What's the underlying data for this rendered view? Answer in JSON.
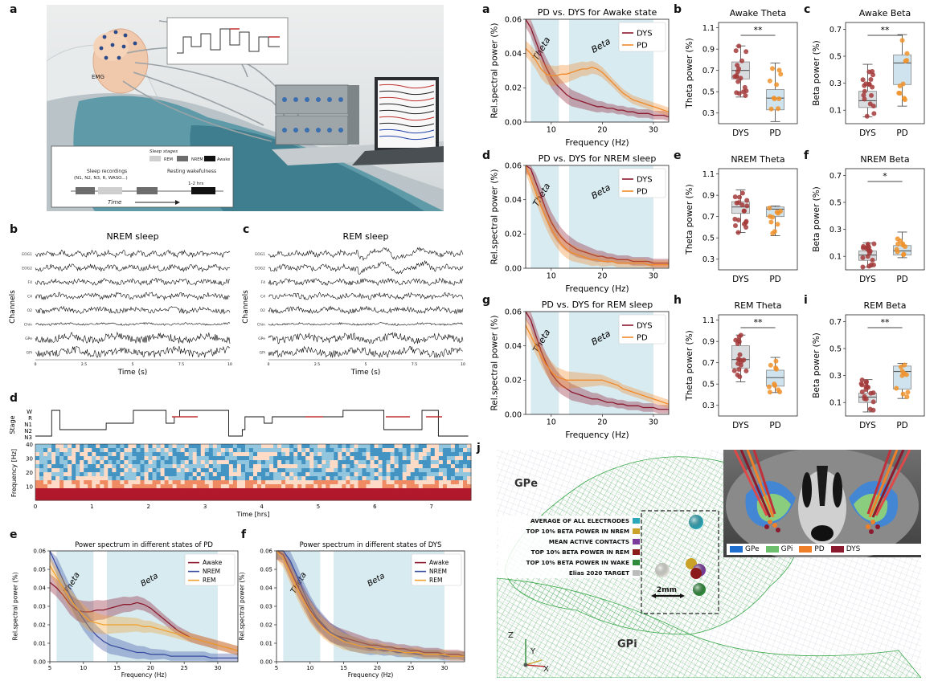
{
  "labels": {
    "a_left": "a",
    "b_left": "b",
    "c_left": "c",
    "d_left": "d",
    "e_left": "e",
    "f_left": "f",
    "a_right": "a",
    "b_right": "b",
    "c_right": "c",
    "d_right": "d",
    "e_right": "e",
    "f_right": "f",
    "g_right": "g",
    "h_right": "h",
    "i_right": "i",
    "j_right": "j"
  },
  "illustration": {
    "emg_label": "EMG",
    "legend_title": "Sleep stages",
    "legend_items": [
      "REM",
      "NREM",
      "Awake"
    ],
    "sleep_recordings": "Sleep recordings",
    "sleep_recordings_sub": "(N1, N2, N3, R, WASO...)",
    "resting": "Resting wakefulness",
    "duration": "1-2 hrs",
    "time": "Time"
  },
  "eeg_nrem": {
    "title": "NREM sleep",
    "channels": [
      "EOG1",
      "EOG2",
      "F4",
      "C4",
      "O2",
      "Chin",
      "GPe",
      "GPi"
    ],
    "ylabel": "Channels",
    "xlabel": "Time (s)",
    "xticks": [
      "0",
      "2.5",
      "5",
      "7.5",
      "10"
    ]
  },
  "eeg_rem": {
    "title": "REM sleep",
    "channels": [
      "EOG1",
      "EOG2",
      "F4",
      "C4",
      "O2",
      "Chin",
      "GPe",
      "GPi"
    ],
    "ylabel": "Channels",
    "xlabel": "Time (s)",
    "xticks": [
      "0",
      "2.5",
      "5",
      "7.5",
      "10"
    ]
  },
  "hypnogram": {
    "ylabel": "Stage",
    "stages": [
      "W",
      "R",
      "N1",
      "N2",
      "N3"
    ],
    "spec_ylabel": "Frequency [Hz]",
    "spec_yticks": [
      "10",
      "20",
      "30",
      "40"
    ],
    "xlabel": "Time [hrs]",
    "xticks": [
      "0",
      "1",
      "2",
      "3",
      "4",
      "5",
      "6",
      "7"
    ]
  },
  "spectra_left": [
    {
      "title": "Power spectrum in different states of PD",
      "ylabel": "Rel.spectral power (%)",
      "xlabel": "Frequency (Hz)",
      "band1": "Theta",
      "band2": "Beta",
      "xticks": [
        "5",
        "10",
        "15",
        "20",
        "25",
        "30"
      ],
      "yticks": [
        "0.00",
        "0.01",
        "0.02",
        "0.03",
        "0.04",
        "0.05",
        "0.06"
      ],
      "legend": [
        "Awake",
        "NREM",
        "REM"
      ]
    },
    {
      "title": "Power spectrum in different states of DYS",
      "ylabel": "Rel.spectral power (%)",
      "xlabel": "Frequency (Hz)",
      "band1": "Theta",
      "band2": "Beta",
      "xticks": [
        "5",
        "10",
        "15",
        "20",
        "25",
        "30"
      ],
      "yticks": [
        "0.00",
        "0.01",
        "0.02",
        "0.03",
        "0.04",
        "0.05",
        "0.06"
      ],
      "legend": [
        "Awake",
        "NREM",
        "REM"
      ]
    }
  ],
  "spectra_right": [
    {
      "title": "PD vs. DYS for Awake state",
      "ylabel": "Rel.spectral power (%)",
      "xlabel": "Frequency (Hz)",
      "band1": "Theta",
      "band2": "Beta",
      "xticks": [
        "10",
        "20",
        "30"
      ],
      "yticks": [
        "0.00",
        "0.02",
        "0.04",
        "0.06"
      ],
      "legend": [
        "DYS",
        "PD"
      ]
    },
    {
      "title": "PD vs. DYS for NREM sleep",
      "ylabel": "Rel.spectral power (%)",
      "xlabel": "Frequency (Hz)",
      "band1": "Theta",
      "band2": "Beta",
      "xticks": [
        "10",
        "20",
        "30"
      ],
      "yticks": [
        "0.00",
        "0.02",
        "0.04",
        "0.06"
      ],
      "legend": [
        "DYS",
        "PD"
      ]
    },
    {
      "title": "PD vs. DYS for REM sleep",
      "ylabel": "Rel.spectral power (%)",
      "xlabel": "Frequency (Hz)",
      "band1": "Theta",
      "band2": "Beta",
      "xticks": [
        "10",
        "20",
        "30"
      ],
      "yticks": [
        "0.00",
        "0.02",
        "0.04",
        "0.06"
      ],
      "legend": [
        "DYS",
        "PD"
      ]
    }
  ],
  "boxplots": [
    {
      "title": "Awake Theta",
      "ylabel": "Theta power (%)",
      "sig": "**",
      "yticks": [
        "0.3",
        "0.5",
        "0.7",
        "0.9",
        "1.1"
      ],
      "groups": [
        "DYS",
        "PD"
      ]
    },
    {
      "title": "Awake Beta",
      "ylabel": "Beta power (%)",
      "sig": "**",
      "yticks": [
        "0.1",
        "0.3",
        "0.5",
        "0.7"
      ],
      "groups": [
        "DYS",
        "PD"
      ]
    },
    {
      "title": "NREM Theta",
      "ylabel": "Theta power (%)",
      "sig": "",
      "yticks": [
        "0.3",
        "0.5",
        "0.7",
        "0.9",
        "1.1"
      ],
      "groups": [
        "DYS",
        "PD"
      ]
    },
    {
      "title": "NREM Beta",
      "ylabel": "Beta power (%)",
      "sig": "*",
      "yticks": [
        "0.1",
        "0.3",
        "0.5",
        "0.7"
      ],
      "groups": [
        "DYS",
        "PD"
      ]
    },
    {
      "title": "REM Theta",
      "ylabel": "Theta power (%)",
      "sig": "**",
      "yticks": [
        "0.3",
        "0.5",
        "0.7",
        "0.9",
        "1.1"
      ],
      "groups": [
        "DYS",
        "PD"
      ]
    },
    {
      "title": "REM Beta",
      "ylabel": "Beta power (%)",
      "sig": "**",
      "yticks": [
        "0.1",
        "0.3",
        "0.5",
        "0.7"
      ],
      "groups": [
        "DYS",
        "PD"
      ]
    }
  ],
  "brain": {
    "gpe": "GPe",
    "gpi": "GPi",
    "scale": "2mm",
    "axes": [
      "Z",
      "Y",
      "X"
    ],
    "legend": [
      {
        "label": "AVERAGE OF ALL ELECTRODES",
        "color": "#2aa7b8"
      },
      {
        "label": "TOP 10% BETA POWER IN NREM",
        "color": "#c9a227"
      },
      {
        "label": "MEAN ACTIVE CONTACTS",
        "color": "#7a3b9c"
      },
      {
        "label": "TOP 10% BETA POWER IN REM",
        "color": "#8b1a1a"
      },
      {
        "label": "TOP 10% BETA POWER IN WAKE",
        "color": "#2e8b3a"
      },
      {
        "label": "Elias 2020 TARGET",
        "color": "#bbbbbb"
      }
    ],
    "inset_legend": [
      {
        "label": "GPe",
        "color": "#1f6fd1"
      },
      {
        "label": "GPi",
        "color": "#6dbf6d"
      },
      {
        "label": "PD",
        "color": "#f07f2a"
      },
      {
        "label": "DYS",
        "color": "#8b1a2e"
      }
    ]
  },
  "chart_data": [
    {
      "type": "line",
      "id": "left-e",
      "title": "Power spectrum in different states of PD",
      "xlabel": "Frequency (Hz)",
      "ylabel": "Rel.spectral power (%)",
      "xlim": [
        5,
        33
      ],
      "ylim": [
        0,
        0.06
      ],
      "x": [
        5,
        6,
        7,
        8,
        9,
        10,
        11,
        12,
        13,
        14,
        15,
        16,
        17,
        18,
        19,
        20,
        21,
        22,
        23,
        24,
        25,
        26,
        27,
        28,
        29,
        30,
        31,
        32,
        33
      ],
      "series": [
        {
          "name": "Awake",
          "values": [
            0.043,
            0.04,
            0.036,
            0.031,
            0.028,
            0.027,
            0.027,
            0.028,
            0.028,
            0.029,
            0.03,
            0.031,
            0.031,
            0.032,
            0.031,
            0.029,
            0.026,
            0.023,
            0.02,
            0.017,
            0.015,
            0.013,
            0.012,
            0.011,
            0.01,
            0.009,
            0.008,
            0.007,
            0.006
          ]
        },
        {
          "name": "NREM",
          "values": [
            0.06,
            0.052,
            0.044,
            0.036,
            0.029,
            0.023,
            0.018,
            0.014,
            0.011,
            0.009,
            0.008,
            0.007,
            0.006,
            0.005,
            0.005,
            0.004,
            0.004,
            0.004,
            0.003,
            0.003,
            0.003,
            0.003,
            0.003,
            0.003,
            0.002,
            0.002,
            0.002,
            0.002,
            0.002
          ]
        },
        {
          "name": "REM",
          "values": [
            0.052,
            0.046,
            0.04,
            0.034,
            0.029,
            0.025,
            0.022,
            0.021,
            0.02,
            0.02,
            0.02,
            0.02,
            0.02,
            0.02,
            0.019,
            0.019,
            0.018,
            0.017,
            0.016,
            0.015,
            0.014,
            0.013,
            0.012,
            0.011,
            0.01,
            0.009,
            0.008,
            0.007,
            0.006
          ]
        }
      ]
    },
    {
      "type": "line",
      "id": "left-f",
      "title": "Power spectrum in different states of DYS",
      "xlabel": "Frequency (Hz)",
      "ylabel": "Rel.spectral power (%)",
      "xlim": [
        5,
        33
      ],
      "ylim": [
        0,
        0.06
      ],
      "x": [
        5,
        6,
        7,
        8,
        9,
        10,
        11,
        12,
        13,
        14,
        15,
        16,
        17,
        18,
        19,
        20,
        21,
        22,
        23,
        24,
        25,
        26,
        27,
        28,
        29,
        30,
        31,
        32,
        33
      ],
      "series": [
        {
          "name": "Awake",
          "values": [
            0.06,
            0.058,
            0.05,
            0.042,
            0.035,
            0.028,
            0.023,
            0.019,
            0.016,
            0.014,
            0.013,
            0.012,
            0.011,
            0.01,
            0.009,
            0.009,
            0.008,
            0.008,
            0.007,
            0.007,
            0.006,
            0.006,
            0.005,
            0.005,
            0.005,
            0.004,
            0.004,
            0.004,
            0.003
          ]
        },
        {
          "name": "NREM",
          "values": [
            0.06,
            0.06,
            0.055,
            0.047,
            0.038,
            0.03,
            0.024,
            0.02,
            0.016,
            0.014,
            0.012,
            0.01,
            0.009,
            0.008,
            0.007,
            0.007,
            0.006,
            0.006,
            0.005,
            0.005,
            0.005,
            0.004,
            0.004,
            0.004,
            0.004,
            0.003,
            0.003,
            0.003,
            0.003
          ]
        },
        {
          "name": "REM",
          "values": [
            0.06,
            0.056,
            0.048,
            0.04,
            0.033,
            0.027,
            0.022,
            0.018,
            0.015,
            0.013,
            0.011,
            0.01,
            0.009,
            0.008,
            0.008,
            0.007,
            0.007,
            0.006,
            0.006,
            0.005,
            0.005,
            0.005,
            0.004,
            0.004,
            0.004,
            0.004,
            0.003,
            0.003,
            0.003
          ]
        }
      ]
    },
    {
      "type": "line",
      "id": "right-a",
      "title": "PD vs. DYS for Awake state",
      "xlabel": "Frequency (Hz)",
      "ylabel": "Rel.spectral power (%)",
      "xlim": [
        5,
        33
      ],
      "ylim": [
        0,
        0.06
      ],
      "x": [
        5,
        6,
        7,
        8,
        9,
        10,
        11,
        12,
        13,
        14,
        15,
        16,
        17,
        18,
        19,
        20,
        21,
        22,
        23,
        24,
        25,
        26,
        27,
        28,
        29,
        30,
        31,
        32,
        33
      ],
      "series": [
        {
          "name": "DYS",
          "values": [
            0.06,
            0.055,
            0.047,
            0.039,
            0.032,
            0.026,
            0.022,
            0.019,
            0.016,
            0.014,
            0.013,
            0.012,
            0.011,
            0.01,
            0.009,
            0.009,
            0.008,
            0.008,
            0.007,
            0.007,
            0.006,
            0.006,
            0.005,
            0.005,
            0.005,
            0.004,
            0.004,
            0.004,
            0.003
          ]
        },
        {
          "name": "PD",
          "values": [
            0.043,
            0.04,
            0.036,
            0.031,
            0.028,
            0.027,
            0.027,
            0.028,
            0.028,
            0.029,
            0.03,
            0.031,
            0.031,
            0.032,
            0.031,
            0.029,
            0.026,
            0.023,
            0.02,
            0.017,
            0.015,
            0.013,
            0.012,
            0.011,
            0.01,
            0.009,
            0.008,
            0.007,
            0.006
          ]
        }
      ]
    },
    {
      "type": "line",
      "id": "right-d",
      "title": "PD vs. DYS for NREM sleep",
      "xlabel": "Frequency (Hz)",
      "ylabel": "Rel.spectral power (%)",
      "xlim": [
        5,
        33
      ],
      "ylim": [
        0,
        0.06
      ],
      "x": [
        5,
        6,
        7,
        8,
        9,
        10,
        11,
        12,
        13,
        14,
        15,
        16,
        17,
        18,
        19,
        20,
        21,
        22,
        23,
        24,
        25,
        26,
        27,
        28,
        29,
        30,
        31,
        32,
        33
      ],
      "series": [
        {
          "name": "DYS",
          "values": [
            0.06,
            0.058,
            0.05,
            0.042,
            0.034,
            0.027,
            0.022,
            0.018,
            0.015,
            0.013,
            0.011,
            0.01,
            0.009,
            0.008,
            0.007,
            0.007,
            0.006,
            0.006,
            0.005,
            0.005,
            0.005,
            0.004,
            0.004,
            0.004,
            0.004,
            0.003,
            0.003,
            0.003,
            0.003
          ]
        },
        {
          "name": "PD",
          "values": [
            0.06,
            0.052,
            0.044,
            0.036,
            0.029,
            0.023,
            0.018,
            0.014,
            0.011,
            0.009,
            0.008,
            0.007,
            0.006,
            0.005,
            0.005,
            0.004,
            0.004,
            0.004,
            0.003,
            0.003,
            0.003,
            0.003,
            0.003,
            0.003,
            0.002,
            0.002,
            0.002,
            0.002,
            0.002
          ]
        }
      ]
    },
    {
      "type": "line",
      "id": "right-g",
      "title": "PD vs. DYS for REM sleep",
      "xlabel": "Frequency (Hz)",
      "ylabel": "Rel.spectral power (%)",
      "xlim": [
        5,
        33
      ],
      "ylim": [
        0,
        0.06
      ],
      "x": [
        5,
        6,
        7,
        8,
        9,
        10,
        11,
        12,
        13,
        14,
        15,
        16,
        17,
        18,
        19,
        20,
        21,
        22,
        23,
        24,
        25,
        26,
        27,
        28,
        29,
        30,
        31,
        32,
        33
      ],
      "series": [
        {
          "name": "DYS",
          "values": [
            0.06,
            0.055,
            0.046,
            0.037,
            0.03,
            0.024,
            0.02,
            0.017,
            0.015,
            0.013,
            0.012,
            0.011,
            0.01,
            0.009,
            0.009,
            0.008,
            0.007,
            0.007,
            0.006,
            0.006,
            0.005,
            0.005,
            0.005,
            0.004,
            0.004,
            0.004,
            0.003,
            0.003,
            0.003
          ]
        },
        {
          "name": "PD",
          "values": [
            0.052,
            0.046,
            0.04,
            0.034,
            0.029,
            0.025,
            0.022,
            0.021,
            0.02,
            0.02,
            0.02,
            0.02,
            0.02,
            0.02,
            0.02,
            0.02,
            0.019,
            0.018,
            0.017,
            0.015,
            0.014,
            0.013,
            0.012,
            0.011,
            0.01,
            0.009,
            0.008,
            0.007,
            0.006
          ]
        }
      ]
    }
  ]
}
